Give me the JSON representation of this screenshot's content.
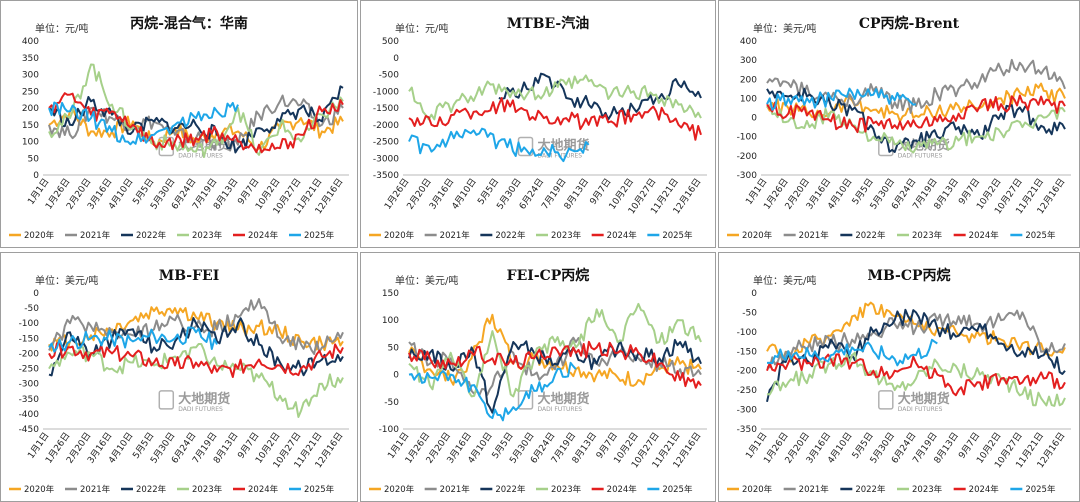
{
  "colors": {
    "s2020": "#f5a623",
    "s2021": "#8c8c8c",
    "s2022": "#15355a",
    "s2023": "#a6d08a",
    "s2024": "#e31f1f",
    "s2025": "#1ea6e8"
  },
  "watermark": {
    "cn": "大地期货",
    "en": "DADI FUTURES"
  },
  "chart_data": [
    {
      "type": "line",
      "title": "丙烷-混合气：华南",
      "unit": "单位：元/吨",
      "ylim": [
        0,
        400
      ],
      "yticks": [
        0,
        50,
        100,
        150,
        200,
        250,
        300,
        350,
        400
      ],
      "categories": [
        "1月1日",
        "1月26日",
        "2月20日",
        "3月16日",
        "4月10日",
        "5月5日",
        "5月30日",
        "6月24日",
        "7月19日",
        "8月13日",
        "9月7日",
        "10月2日",
        "10月27日",
        "11月21日",
        "12月16日"
      ],
      "series": [
        {
          "name": "2020年",
          "color": "s2020",
          "values": [
            150,
            190,
            130,
            130,
            160,
            90,
            140,
            100,
            130,
            130,
            80,
            140,
            170,
            130,
            160
          ]
        },
        {
          "name": "2021年",
          "color": "s2021",
          "values": [
            150,
            120,
            200,
            170,
            150,
            160,
            120,
            110,
            100,
            90,
            180,
            220,
            210,
            150,
            200
          ]
        },
        {
          "name": "2022年",
          "color": "s2022",
          "values": [
            200,
            150,
            220,
            180,
            130,
            160,
            140,
            150,
            120,
            80,
            140,
            160,
            200,
            160,
            260
          ]
        },
        {
          "name": "2023年",
          "color": "s2023",
          "values": [
            130,
            170,
            330,
            210,
            140,
            100,
            90,
            70,
            90,
            200,
            60,
            150,
            100,
            180,
            220
          ]
        },
        {
          "name": "2024年",
          "color": "s2024",
          "values": [
            200,
            240,
            180,
            190,
            150,
            90,
            100,
            110,
            130,
            100,
            90,
            80,
            120,
            190,
            210
          ]
        },
        {
          "name": "2025年",
          "color": "s2025",
          "values": [
            200,
            190,
            170,
            130,
            100,
            120,
            150,
            170,
            190,
            210,
            null,
            null,
            null,
            null,
            null
          ]
        }
      ]
    },
    {
      "type": "line",
      "title": "MTBE-汽油",
      "unit": "单位：元/吨",
      "ylim": [
        -3500,
        500
      ],
      "yticks": [
        -3500,
        -3000,
        -2500,
        -2000,
        -1500,
        -1000,
        -500,
        0,
        500
      ],
      "categories": [
        "1月26日",
        "2月20日",
        "3月16日",
        "4月10日",
        "5月5日",
        "5月30日",
        "6月24日",
        "7月19日",
        "8月13日",
        "9月7日",
        "10月2日",
        "10月27日",
        "11月21日",
        "12月16日"
      ],
      "series": [
        {
          "name": "2020年",
          "color": "s2020",
          "values": [
            null,
            null,
            null,
            null,
            null,
            null,
            null,
            null,
            null,
            null,
            null,
            null,
            null,
            null
          ]
        },
        {
          "name": "2021年",
          "color": "s2021",
          "values": [
            null,
            null,
            null,
            null,
            null,
            null,
            null,
            null,
            null,
            null,
            null,
            null,
            null,
            null
          ]
        },
        {
          "name": "2022年",
          "color": "s2022",
          "values": [
            null,
            null,
            null,
            null,
            -1200,
            -1000,
            -500,
            -1200,
            -1400,
            -1700,
            -1500,
            -1200,
            -800,
            -1200
          ]
        },
        {
          "name": "2023年",
          "color": "s2023",
          "values": [
            -1000,
            -1700,
            -1400,
            -1100,
            -800,
            -1100,
            -1100,
            -800,
            -700,
            -1100,
            -1000,
            -1100,
            -1400,
            -1800
          ]
        },
        {
          "name": "2024年",
          "color": "s2024",
          "values": [
            -1800,
            -2000,
            -1700,
            -1600,
            -1400,
            -1500,
            -1800,
            -1800,
            -2000,
            -1900,
            -1700,
            -1600,
            -2000,
            -2300
          ]
        },
        {
          "name": "2025年",
          "color": "s2025",
          "values": [
            -2500,
            -2800,
            -2400,
            -2300,
            -2500,
            -2800,
            -2700,
            -2900,
            -2600,
            null,
            null,
            null,
            null,
            null
          ]
        }
      ]
    },
    {
      "type": "line",
      "title": "CP丙烷-Brent",
      "unit": "单位：美元/吨",
      "ylim": [
        -300,
        400
      ],
      "yticks": [
        -300,
        -200,
        -100,
        0,
        100,
        200,
        300,
        400
      ],
      "categories": [
        "1月1日",
        "1月26日",
        "2月20日",
        "3月16日",
        "4月10日",
        "5月5日",
        "5月30日",
        "6月24日",
        "7月19日",
        "8月13日",
        "9月7日",
        "10月2日",
        "10月27日",
        "11月21日",
        "12月16日"
      ],
      "series": [
        {
          "name": "2020年",
          "color": "s2020",
          "values": [
            60,
            50,
            20,
            30,
            90,
            40,
            20,
            10,
            30,
            60,
            50,
            100,
            120,
            140,
            100
          ]
        },
        {
          "name": "2021年",
          "color": "s2021",
          "values": [
            180,
            180,
            120,
            100,
            100,
            140,
            80,
            60,
            120,
            150,
            190,
            250,
            270,
            250,
            150
          ]
        },
        {
          "name": "2022年",
          "color": "s2022",
          "values": [
            150,
            110,
            120,
            60,
            40,
            -60,
            -180,
            -120,
            -100,
            -50,
            -100,
            20,
            30,
            -50,
            -60
          ]
        },
        {
          "name": "2023年",
          "color": "s2023",
          "values": [
            50,
            -20,
            -50,
            30,
            -40,
            -100,
            -140,
            -160,
            -140,
            -120,
            -100,
            -80,
            -50,
            0,
            30
          ]
        },
        {
          "name": "2024年",
          "color": "s2024",
          "values": [
            70,
            20,
            30,
            -20,
            -40,
            -30,
            -40,
            -40,
            -20,
            20,
            60,
            70,
            80,
            70,
            60
          ]
        },
        {
          "name": "2025年",
          "color": "s2025",
          "values": [
            70,
            100,
            80,
            100,
            130,
            120,
            90,
            70,
            null,
            null,
            null,
            null,
            null,
            null,
            null
          ]
        }
      ]
    },
    {
      "type": "line",
      "title": "MB-FEI",
      "unit": "单位：美元/吨",
      "ylim": [
        -450,
        0
      ],
      "yticks": [
        -450,
        -400,
        -350,
        -300,
        -250,
        -200,
        -150,
        -100,
        -50,
        0
      ],
      "categories": [
        "1月1日",
        "1月26日",
        "2月20日",
        "3月16日",
        "4月10日",
        "5月5日",
        "5月30日",
        "6月24日",
        "7月19日",
        "8月13日",
        "9月7日",
        "10月2日",
        "10月27日",
        "11月21日",
        "12月16日"
      ],
      "series": [
        {
          "name": "2020年",
          "color": "s2020",
          "values": [
            -170,
            -160,
            -140,
            -120,
            -90,
            -60,
            -50,
            -80,
            -100,
            -120,
            -110,
            -130,
            -160,
            -170,
            -160
          ]
        },
        {
          "name": "2021年",
          "color": "s2021",
          "values": [
            -190,
            -100,
            -110,
            -130,
            -140,
            -120,
            -90,
            -110,
            -120,
            -80,
            -20,
            -150,
            -170,
            -180,
            -130
          ]
        },
        {
          "name": "2022年",
          "color": "s2022",
          "values": [
            -270,
            -130,
            -200,
            -150,
            -120,
            -180,
            -160,
            -100,
            -160,
            -100,
            -170,
            -230,
            -250,
            -220,
            -210
          ]
        },
        {
          "name": "2023年",
          "color": "s2023",
          "values": [
            -250,
            -200,
            -200,
            -250,
            -230,
            -240,
            -210,
            -180,
            -240,
            -250,
            -280,
            -340,
            -390,
            -300,
            -280
          ]
        },
        {
          "name": "2024年",
          "color": "s2024",
          "values": [
            -200,
            -180,
            -200,
            -200,
            -210,
            -230,
            -240,
            -230,
            -260,
            -250,
            -220,
            -240,
            -250,
            -210,
            -180
          ]
        },
        {
          "name": "2025年",
          "color": "s2025",
          "values": [
            -180,
            -160,
            -150,
            -150,
            -160,
            -140,
            -150,
            -130,
            -170,
            null,
            null,
            null,
            null,
            null,
            null
          ]
        }
      ]
    },
    {
      "type": "line",
      "title": "FEI-CP丙烷",
      "unit": "单位：美元/吨",
      "ylim": [
        -100,
        150
      ],
      "yticks": [
        -100,
        -50,
        0,
        50,
        100,
        150
      ],
      "categories": [
        "1月1日",
        "1月26日",
        "2月20日",
        "3月16日",
        "4月10日",
        "5月5日",
        "5月30日",
        "6月24日",
        "7月19日",
        "8月13日",
        "9月7日",
        "10月2日",
        "10月27日",
        "11月21日",
        "12月16日"
      ],
      "series": [
        {
          "name": "2020年",
          "color": "s2020",
          "values": [
            40,
            10,
            -10,
            30,
            110,
            20,
            30,
            20,
            10,
            0,
            -5,
            -10,
            10,
            20,
            10
          ]
        },
        {
          "name": "2021年",
          "color": "s2021",
          "values": [
            60,
            20,
            30,
            -30,
            -20,
            40,
            0,
            10,
            60,
            20,
            40,
            30,
            20,
            10,
            0
          ]
        },
        {
          "name": "2022年",
          "color": "s2022",
          "values": [
            30,
            40,
            10,
            50,
            -70,
            60,
            40,
            20,
            40,
            20,
            50,
            40,
            30,
            60,
            20
          ]
        },
        {
          "name": "2023年",
          "color": "s2023",
          "values": [
            20,
            -20,
            40,
            -40,
            80,
            -40,
            30,
            60,
            50,
            120,
            60,
            130,
            60,
            100,
            60
          ]
        },
        {
          "name": "2024年",
          "color": "s2024",
          "values": [
            40,
            30,
            20,
            40,
            30,
            20,
            30,
            50,
            40,
            50,
            40,
            40,
            20,
            -10,
            -20
          ]
        },
        {
          "name": "2025年",
          "color": "s2025",
          "values": [
            0,
            -5,
            0,
            -20,
            -80,
            -60,
            -30,
            0,
            10,
            null,
            null,
            null,
            null,
            null,
            null
          ]
        }
      ]
    },
    {
      "type": "line",
      "title": "MB-CP丙烷",
      "unit": "单位：美元/吨",
      "ylim": [
        -350,
        0
      ],
      "yticks": [
        -350,
        -300,
        -250,
        -200,
        -150,
        -100,
        -50,
        0
      ],
      "categories": [
        "1月1日",
        "1月26日",
        "2月20日",
        "3月16日",
        "4月10日",
        "5月5日",
        "5月30日",
        "6月24日",
        "7月19日",
        "8月13日",
        "9月7日",
        "10月2日",
        "10月27日",
        "11月21日",
        "12月16日"
      ],
      "series": [
        {
          "name": "2020年",
          "color": "s2020",
          "values": [
            -150,
            -160,
            -130,
            -110,
            -60,
            -30,
            -60,
            -80,
            -90,
            -110,
            -110,
            -120,
            -130,
            -150,
            -140
          ]
        },
        {
          "name": "2021年",
          "color": "s2021",
          "values": [
            -190,
            -150,
            -130,
            -130,
            -120,
            -100,
            -80,
            -90,
            -70,
            -60,
            -80,
            -70,
            -50,
            -150,
            -130
          ]
        },
        {
          "name": "2022年",
          "color": "s2022",
          "values": [
            -280,
            -160,
            -180,
            -120,
            -160,
            -100,
            -70,
            -50,
            -90,
            -110,
            -80,
            -130,
            -150,
            -160,
            -200
          ]
        },
        {
          "name": "2023年",
          "color": "s2023",
          "values": [
            -260,
            -230,
            -210,
            -180,
            -160,
            -210,
            -250,
            -220,
            -180,
            -200,
            -210,
            -220,
            -260,
            -280,
            -270
          ]
        },
        {
          "name": "2024年",
          "color": "s2024",
          "values": [
            -200,
            -180,
            -180,
            -170,
            -180,
            -200,
            -200,
            -180,
            -210,
            -250,
            -230,
            -220,
            -230,
            -220,
            -230
          ]
        },
        {
          "name": "2025年",
          "color": "s2025",
          "values": [
            -180,
            -150,
            -160,
            -160,
            -140,
            -150,
            -170,
            -160,
            -130,
            null,
            null,
            null,
            null,
            null,
            null
          ]
        }
      ]
    }
  ]
}
